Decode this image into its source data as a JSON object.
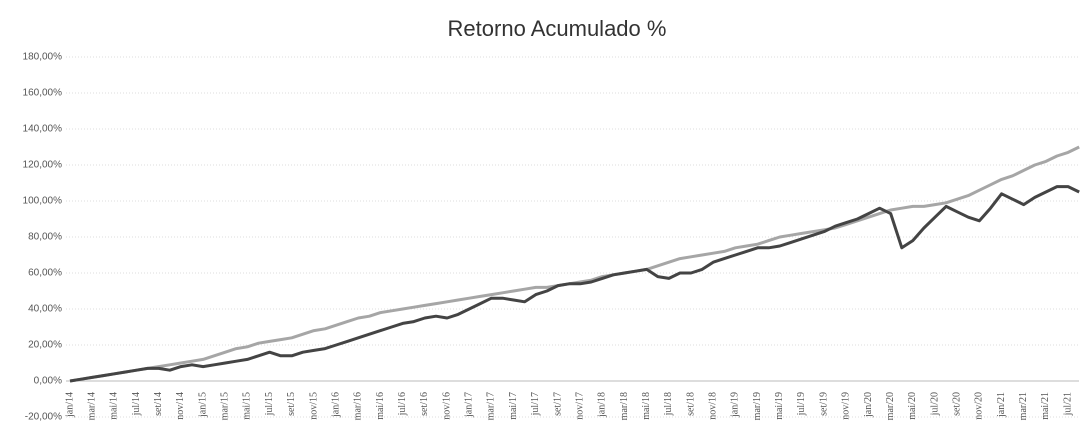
{
  "chart_data": {
    "type": "line",
    "title": "Retorno Acumulado %",
    "categories": [
      "jan/14",
      null,
      "mar/14",
      null,
      "mai/14",
      null,
      "jul/14",
      null,
      "set/14",
      null,
      "nov/14",
      null,
      "jan/15",
      null,
      "mar/15",
      null,
      "mai/15",
      null,
      "jul/15",
      null,
      "set/15",
      null,
      "nov/15",
      null,
      "jan/16",
      null,
      "mar/16",
      null,
      "mai/16",
      null,
      "jul/16",
      null,
      "set/16",
      null,
      "nov/16",
      null,
      "jan/17",
      null,
      "mar/17",
      null,
      "mai/17",
      null,
      "jul/17",
      null,
      "set/17",
      null,
      "nov/17",
      null,
      "jan/18",
      null,
      "mar/18",
      null,
      "mai/18",
      null,
      "jul/18",
      null,
      "set/18",
      null,
      "nov/18",
      null,
      "jan/19",
      null,
      "mar/19",
      null,
      "mai/19",
      null,
      "jul/19",
      null,
      "set/19",
      null,
      "nov/19",
      null,
      "jan/20",
      null,
      "mar/20",
      null,
      "mai/20",
      null,
      "jul/20",
      null,
      "set/20",
      null,
      "nov/20",
      null,
      "jan/21",
      null,
      "mar/21",
      null,
      "mai/21",
      null,
      "jul/21",
      null
    ],
    "series": [
      {
        "color": "#a6a6a6",
        "values": [
          0,
          1,
          2,
          3,
          4,
          5,
          6,
          7,
          8,
          9,
          10,
          11,
          12,
          14,
          16,
          18,
          19,
          21,
          22,
          23,
          24,
          26,
          28,
          29,
          31,
          33,
          35,
          36,
          38,
          39,
          40,
          41,
          42,
          43,
          44,
          45,
          46,
          47,
          48,
          49,
          50,
          51,
          52,
          52,
          53,
          54,
          55,
          56,
          58,
          59,
          60,
          61,
          62,
          64,
          66,
          68,
          69,
          70,
          71,
          72,
          74,
          75,
          76,
          78,
          80,
          81,
          82,
          83,
          84,
          85,
          87,
          89,
          91,
          93,
          95,
          96,
          97,
          97,
          98,
          99,
          101,
          103,
          106,
          109,
          112,
          114,
          117,
          120,
          122,
          125,
          127,
          130
        ]
      },
      {
        "color": "#444444",
        "values": [
          0,
          1,
          2,
          3,
          4,
          5,
          6,
          7,
          7,
          6,
          8,
          9,
          8,
          9,
          10,
          11,
          12,
          14,
          16,
          14,
          14,
          16,
          17,
          18,
          20,
          22,
          24,
          26,
          28,
          30,
          32,
          33,
          35,
          36,
          35,
          37,
          40,
          43,
          46,
          46,
          45,
          44,
          48,
          50,
          53,
          54,
          54,
          55,
          57,
          59,
          60,
          61,
          62,
          58,
          57,
          60,
          60,
          62,
          66,
          68,
          70,
          72,
          74,
          74,
          75,
          77,
          79,
          81,
          83,
          86,
          88,
          90,
          93,
          96,
          93,
          74,
          78,
          85,
          91,
          97,
          94,
          91,
          89,
          96,
          104,
          101,
          98,
          102,
          105,
          108,
          108,
          105
        ]
      }
    ],
    "ylim": [
      -20,
      180
    ],
    "yticks": [
      {
        "value": -20,
        "label": "-20,00%"
      },
      {
        "value": 0,
        "label": "0,00%"
      },
      {
        "value": 20,
        "label": "20,00%"
      },
      {
        "value": 40,
        "label": "40,00%"
      },
      {
        "value": 60,
        "label": "60,00%"
      },
      {
        "value": 80,
        "label": "80,00%"
      },
      {
        "value": 100,
        "label": "100,00%"
      },
      {
        "value": 120,
        "label": "120,00%"
      },
      {
        "value": 140,
        "label": "140,00%"
      },
      {
        "value": 160,
        "label": "160,00%"
      },
      {
        "value": 180,
        "label": "180,00%"
      }
    ],
    "grid": true
  }
}
